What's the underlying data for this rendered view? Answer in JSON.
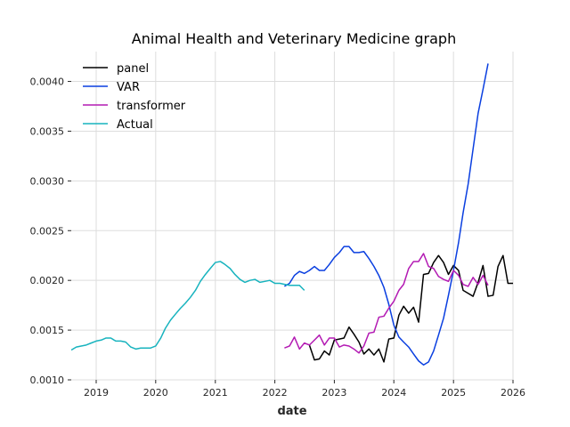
{
  "chart_data": {
    "type": "line",
    "title": "Animal Health and Veterinary Medicine graph",
    "xlabel": "date",
    "ylabel": "",
    "xlim": [
      "2018-08-01",
      "2026-01-01"
    ],
    "ylim": [
      0.001,
      0.0043
    ],
    "x_ticks": [
      "2019",
      "2020",
      "2021",
      "2022",
      "2023",
      "2024",
      "2025",
      "2026"
    ],
    "y_ticks": [
      "0.0010",
      "0.0015",
      "0.0020",
      "0.0025",
      "0.0030",
      "0.0035",
      "0.0040"
    ],
    "grid": true,
    "legend": "upper-left",
    "series": [
      {
        "name": "panel",
        "color": "#000000",
        "points": [
          [
            "2022-08-01",
            0.00135
          ],
          [
            "2022-09-01",
            0.0012
          ],
          [
            "2022-10-01",
            0.00121
          ],
          [
            "2022-11-01",
            0.00129
          ],
          [
            "2022-12-01",
            0.00125
          ],
          [
            "2023-01-01",
            0.0014
          ],
          [
            "2023-02-01",
            0.00141
          ],
          [
            "2023-03-01",
            0.00142
          ],
          [
            "2023-04-01",
            0.00153
          ],
          [
            "2023-05-01",
            0.00146
          ],
          [
            "2023-06-01",
            0.00138
          ],
          [
            "2023-07-01",
            0.00126
          ],
          [
            "2023-08-01",
            0.00131
          ],
          [
            "2023-09-01",
            0.00125
          ],
          [
            "2023-10-01",
            0.00131
          ],
          [
            "2023-11-01",
            0.00118
          ],
          [
            "2023-12-01",
            0.00141
          ],
          [
            "2024-01-01",
            0.00142
          ],
          [
            "2024-02-01",
            0.00165
          ],
          [
            "2024-03-01",
            0.00174
          ],
          [
            "2024-04-01",
            0.00167
          ],
          [
            "2024-05-01",
            0.00173
          ],
          [
            "2024-06-01",
            0.00158
          ],
          [
            "2024-07-01",
            0.00206
          ],
          [
            "2024-08-01",
            0.00207
          ],
          [
            "2024-09-01",
            0.00218
          ],
          [
            "2024-10-01",
            0.00225
          ],
          [
            "2024-11-01",
            0.00218
          ],
          [
            "2024-12-01",
            0.00206
          ],
          [
            "2025-01-01",
            0.00215
          ],
          [
            "2025-02-01",
            0.0021
          ],
          [
            "2025-03-01",
            0.0019
          ],
          [
            "2025-04-01",
            0.00187
          ],
          [
            "2025-05-01",
            0.00184
          ],
          [
            "2025-06-01",
            0.00198
          ],
          [
            "2025-07-01",
            0.00215
          ],
          [
            "2025-08-01",
            0.00184
          ],
          [
            "2025-09-01",
            0.00185
          ],
          [
            "2025-10-01",
            0.00214
          ],
          [
            "2025-11-01",
            0.00225
          ],
          [
            "2025-12-01",
            0.00197
          ],
          [
            "2026-01-01",
            0.00197
          ]
        ]
      },
      {
        "name": "VAR",
        "color": "#0a3fe0",
        "points": [
          [
            "2022-03-01",
            0.00194
          ],
          [
            "2022-04-01",
            0.00197
          ],
          [
            "2022-05-01",
            0.00205
          ],
          [
            "2022-06-01",
            0.00209
          ],
          [
            "2022-07-01",
            0.00207
          ],
          [
            "2022-08-01",
            0.0021
          ],
          [
            "2022-09-01",
            0.00214
          ],
          [
            "2022-10-01",
            0.0021
          ],
          [
            "2022-11-01",
            0.0021
          ],
          [
            "2022-12-01",
            0.00216
          ],
          [
            "2023-01-01",
            0.00223
          ],
          [
            "2023-02-01",
            0.00228
          ],
          [
            "2023-03-01",
            0.00234
          ],
          [
            "2023-04-01",
            0.00234
          ],
          [
            "2023-05-01",
            0.00228
          ],
          [
            "2023-06-01",
            0.00228
          ],
          [
            "2023-07-01",
            0.00229
          ],
          [
            "2023-08-01",
            0.00222
          ],
          [
            "2023-09-01",
            0.00214
          ],
          [
            "2023-10-01",
            0.00205
          ],
          [
            "2023-11-01",
            0.00193
          ],
          [
            "2023-12-01",
            0.00176
          ],
          [
            "2024-01-01",
            0.00155
          ],
          [
            "2024-02-01",
            0.00143
          ],
          [
            "2024-03-01",
            0.00138
          ],
          [
            "2024-04-01",
            0.00133
          ],
          [
            "2024-05-01",
            0.00126
          ],
          [
            "2024-06-01",
            0.00119
          ],
          [
            "2024-07-01",
            0.00115
          ],
          [
            "2024-08-01",
            0.00118
          ],
          [
            "2024-09-01",
            0.00129
          ],
          [
            "2024-10-01",
            0.00145
          ],
          [
            "2024-11-01",
            0.00162
          ],
          [
            "2024-12-01",
            0.00185
          ],
          [
            "2025-01-01",
            0.0021
          ],
          [
            "2025-02-01",
            0.00238
          ],
          [
            "2025-03-01",
            0.00268
          ],
          [
            "2025-04-01",
            0.00297
          ],
          [
            "2025-05-01",
            0.00332
          ],
          [
            "2025-06-01",
            0.00368
          ],
          [
            "2025-07-01",
            0.00392
          ],
          [
            "2025-08-01",
            0.00418
          ]
        ]
      },
      {
        "name": "transformer",
        "color": "#b31ab3",
        "points": [
          [
            "2022-03-01",
            0.00132
          ],
          [
            "2022-04-01",
            0.00134
          ],
          [
            "2022-05-01",
            0.00143
          ],
          [
            "2022-06-01",
            0.00131
          ],
          [
            "2022-07-01",
            0.00137
          ],
          [
            "2022-08-01",
            0.00135
          ],
          [
            "2022-09-01",
            0.0014
          ],
          [
            "2022-10-01",
            0.00145
          ],
          [
            "2022-11-01",
            0.00135
          ],
          [
            "2022-12-01",
            0.00142
          ],
          [
            "2023-01-01",
            0.00142
          ],
          [
            "2023-02-01",
            0.00133
          ],
          [
            "2023-03-01",
            0.00135
          ],
          [
            "2023-04-01",
            0.00134
          ],
          [
            "2023-05-01",
            0.00131
          ],
          [
            "2023-06-01",
            0.00127
          ],
          [
            "2023-07-01",
            0.00134
          ],
          [
            "2023-08-01",
            0.00147
          ],
          [
            "2023-09-01",
            0.00148
          ],
          [
            "2023-10-01",
            0.00163
          ],
          [
            "2023-11-01",
            0.00164
          ],
          [
            "2023-12-01",
            0.00172
          ],
          [
            "2024-01-01",
            0.00179
          ],
          [
            "2024-02-01",
            0.0019
          ],
          [
            "2024-03-01",
            0.00196
          ],
          [
            "2024-04-01",
            0.00212
          ],
          [
            "2024-05-01",
            0.00219
          ],
          [
            "2024-06-01",
            0.00219
          ],
          [
            "2024-07-01",
            0.00227
          ],
          [
            "2024-08-01",
            0.00214
          ],
          [
            "2024-09-01",
            0.00212
          ],
          [
            "2024-10-01",
            0.00204
          ],
          [
            "2024-11-01",
            0.00201
          ],
          [
            "2024-12-01",
            0.00199
          ],
          [
            "2025-01-01",
            0.0021
          ],
          [
            "2025-02-01",
            0.00205
          ],
          [
            "2025-03-01",
            0.00196
          ],
          [
            "2025-04-01",
            0.00194
          ],
          [
            "2025-05-01",
            0.00203
          ],
          [
            "2025-06-01",
            0.00196
          ],
          [
            "2025-07-01",
            0.00205
          ],
          [
            "2025-08-01",
            0.00195
          ]
        ]
      },
      {
        "name": "Actual",
        "color": "#17b3be",
        "points": [
          [
            "2018-08-01",
            0.0013
          ],
          [
            "2018-09-01",
            0.00133
          ],
          [
            "2018-10-01",
            0.00134
          ],
          [
            "2018-11-01",
            0.00135
          ],
          [
            "2018-12-01",
            0.00137
          ],
          [
            "2019-01-01",
            0.00139
          ],
          [
            "2019-02-01",
            0.0014
          ],
          [
            "2019-03-01",
            0.00142
          ],
          [
            "2019-04-01",
            0.00142
          ],
          [
            "2019-05-01",
            0.00139
          ],
          [
            "2019-06-01",
            0.00139
          ],
          [
            "2019-07-01",
            0.00138
          ],
          [
            "2019-08-01",
            0.00133
          ],
          [
            "2019-09-01",
            0.00131
          ],
          [
            "2019-10-01",
            0.00132
          ],
          [
            "2019-11-01",
            0.00132
          ],
          [
            "2019-12-01",
            0.00132
          ],
          [
            "2020-01-01",
            0.00134
          ],
          [
            "2020-02-01",
            0.00142
          ],
          [
            "2020-03-01",
            0.00152
          ],
          [
            "2020-04-01",
            0.0016
          ],
          [
            "2020-05-01",
            0.00166
          ],
          [
            "2020-06-01",
            0.00172
          ],
          [
            "2020-07-01",
            0.00177
          ],
          [
            "2020-08-01",
            0.00183
          ],
          [
            "2020-09-01",
            0.0019
          ],
          [
            "2020-10-01",
            0.00199
          ],
          [
            "2020-11-01",
            0.00206
          ],
          [
            "2020-12-01",
            0.00212
          ],
          [
            "2021-01-01",
            0.00218
          ],
          [
            "2021-02-01",
            0.00219
          ],
          [
            "2021-03-01",
            0.00216
          ],
          [
            "2021-04-01",
            0.00212
          ],
          [
            "2021-05-01",
            0.00206
          ],
          [
            "2021-06-01",
            0.00201
          ],
          [
            "2021-07-01",
            0.00198
          ],
          [
            "2021-08-01",
            0.002
          ],
          [
            "2021-09-01",
            0.00201
          ],
          [
            "2021-10-01",
            0.00198
          ],
          [
            "2021-11-01",
            0.00199
          ],
          [
            "2021-12-01",
            0.002
          ],
          [
            "2022-01-01",
            0.00197
          ],
          [
            "2022-02-01",
            0.00197
          ],
          [
            "2022-03-01",
            0.00196
          ],
          [
            "2022-04-01",
            0.00195
          ],
          [
            "2022-05-01",
            0.00195
          ],
          [
            "2022-06-01",
            0.00195
          ],
          [
            "2022-07-01",
            0.0019
          ]
        ]
      }
    ]
  }
}
